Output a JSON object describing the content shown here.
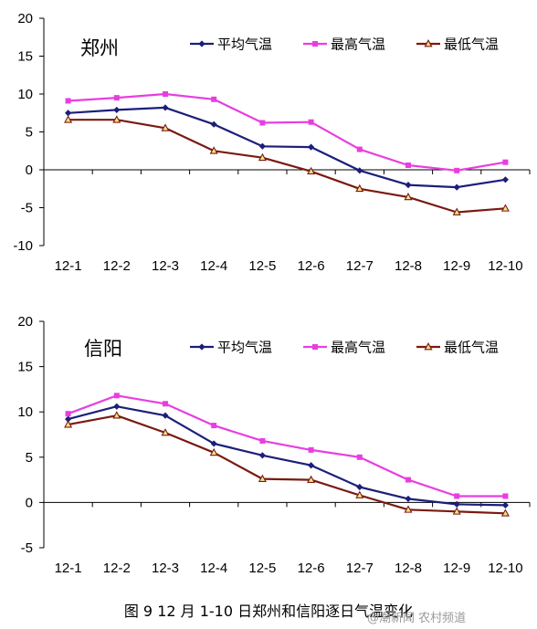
{
  "caption": "图 9  12 月 1-10 日郑州和信阳逐日气温变化",
  "watermark": "@潮新闻 农村频道",
  "chart_data": [
    {
      "type": "line",
      "title": "郑州",
      "categories": [
        "12-1",
        "12-2",
        "12-3",
        "12-4",
        "12-5",
        "12-6",
        "12-7",
        "12-8",
        "12-9",
        "12-10"
      ],
      "ylim": [
        -10,
        20
      ],
      "yticks": [
        -10,
        -5,
        0,
        5,
        10,
        15,
        20
      ],
      "grid": false,
      "legend_position": "top-right",
      "series": [
        {
          "name": "平均气温",
          "color": "#1b1f7a",
          "marker": "diamond",
          "values": [
            7.5,
            7.9,
            8.2,
            6.0,
            3.1,
            3.0,
            -0.1,
            -2.0,
            -2.3,
            -1.3
          ]
        },
        {
          "name": "最高气温",
          "color": "#e83ee0",
          "marker": "square",
          "values": [
            9.1,
            9.5,
            10.0,
            9.3,
            6.2,
            6.3,
            2.7,
            0.6,
            -0.1,
            1.0
          ]
        },
        {
          "name": "最低气温",
          "color": "#7a1a10",
          "marker": "triangle",
          "values": [
            6.6,
            6.6,
            5.5,
            2.5,
            1.6,
            -0.2,
            -2.5,
            -3.6,
            -5.6,
            -5.1
          ]
        }
      ]
    },
    {
      "type": "line",
      "title": "信阳",
      "categories": [
        "12-1",
        "12-2",
        "12-3",
        "12-4",
        "12-5",
        "12-6",
        "12-7",
        "12-8",
        "12-9",
        "12-10"
      ],
      "ylim": [
        -5,
        20
      ],
      "yticks": [
        -5,
        0,
        5,
        10,
        15,
        20
      ],
      "grid": false,
      "legend_position": "top-right",
      "series": [
        {
          "name": "平均气温",
          "color": "#1b1f7a",
          "marker": "diamond",
          "values": [
            9.2,
            10.6,
            9.6,
            6.5,
            5.2,
            4.1,
            1.7,
            0.4,
            -0.2,
            -0.3
          ]
        },
        {
          "name": "最高气温",
          "color": "#e83ee0",
          "marker": "square",
          "values": [
            9.8,
            11.8,
            10.9,
            8.5,
            6.8,
            5.8,
            5.0,
            2.5,
            0.7,
            0.7
          ]
        },
        {
          "name": "最低气温",
          "color": "#7a1a10",
          "marker": "triangle",
          "values": [
            8.6,
            9.6,
            7.7,
            5.5,
            2.6,
            2.5,
            0.8,
            -0.8,
            -1.0,
            -1.2
          ]
        }
      ]
    }
  ]
}
